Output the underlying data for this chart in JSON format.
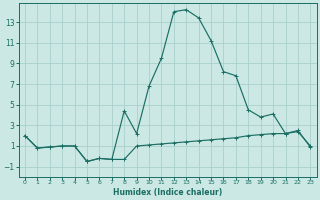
{
  "xlabel": "Humidex (Indice chaleur)",
  "bg_color": "#cce8e4",
  "line_color": "#1a6e64",
  "grid_color": "#aacfcc",
  "xlim": [
    -0.5,
    23.5
  ],
  "ylim": [
    -2.0,
    14.8
  ],
  "yticks": [
    -1,
    1,
    3,
    5,
    7,
    9,
    11,
    13
  ],
  "xticks": [
    0,
    1,
    2,
    3,
    4,
    5,
    6,
    7,
    8,
    9,
    10,
    11,
    12,
    13,
    14,
    15,
    16,
    17,
    18,
    19,
    20,
    21,
    22,
    23
  ],
  "line1_x": [
    0,
    1,
    2,
    3,
    4,
    5,
    6,
    7,
    8,
    9,
    10,
    11,
    12,
    13,
    14,
    15,
    16,
    17,
    18,
    19,
    20,
    21,
    22,
    23
  ],
  "line1_y": [
    2.0,
    0.8,
    0.9,
    1.0,
    1.0,
    -0.5,
    -0.2,
    -0.3,
    -0.3,
    1.0,
    1.1,
    1.2,
    1.3,
    1.4,
    1.5,
    1.6,
    1.7,
    1.8,
    2.0,
    2.1,
    2.2,
    2.2,
    2.4,
    1.0
  ],
  "line2_x": [
    0,
    1,
    2,
    3,
    4,
    5,
    6,
    7,
    8,
    9,
    10,
    11,
    12,
    13,
    14,
    15,
    16,
    17,
    18,
    19,
    20,
    21,
    22,
    23
  ],
  "line2_y": [
    2.0,
    0.8,
    0.9,
    1.0,
    1.0,
    -0.5,
    -0.2,
    -0.3,
    4.4,
    2.2,
    6.8,
    9.5,
    14.0,
    14.2,
    13.4,
    11.2,
    8.2,
    7.8,
    4.5,
    3.8,
    4.1,
    2.2,
    2.5,
    0.9
  ]
}
